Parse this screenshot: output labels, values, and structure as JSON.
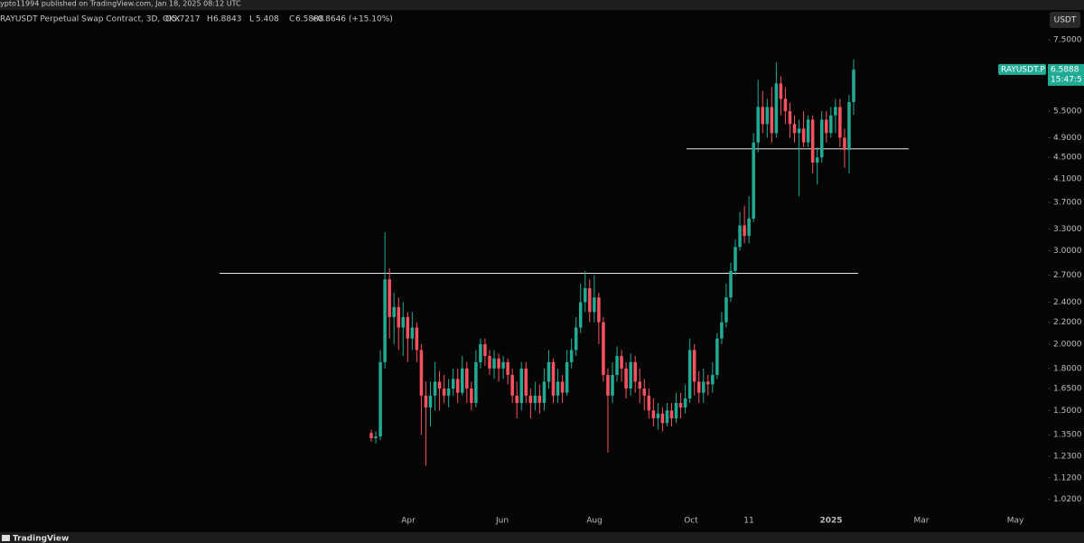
{
  "published": "ypto11994 published on TradingView.com, Jan 18, 2025 08:12 UTC",
  "currency_button": "USDT",
  "brand": "TradingView",
  "chart_data": {
    "type": "candlestick",
    "title": "RAYUSDT Perpetual Swap Contract, 3D, OKX",
    "legend_labels": [
      "O",
      "H",
      "L",
      "C"
    ],
    "change": "+0.8646 (+15.10%)",
    "symbol_label": "RAYUSDT.P",
    "countdown": "15:47:5",
    "up_color": "#22ab94",
    "down_color": "#f7525f",
    "log_scale": true,
    "x_labels": [
      "Apr",
      "Jun",
      "Aug",
      "Oct",
      "11",
      "2025",
      "Mar",
      "May"
    ],
    "ylim": [
      0.953,
      7.92
    ],
    "yticks": [
      {
        "value": 7.5,
        "label": "7.5000"
      },
      {
        "value": 5.5,
        "label": "5.5000"
      },
      {
        "value": 4.9,
        "label": "4.9000"
      },
      {
        "value": 4.5,
        "label": "4.5000"
      },
      {
        "value": 4.1,
        "label": "4.1000"
      },
      {
        "value": 3.7,
        "label": "3.7000"
      },
      {
        "value": 3.3,
        "label": "3.3000"
      },
      {
        "value": 3.0,
        "label": "3.0000"
      },
      {
        "value": 2.7,
        "label": "2.7000"
      },
      {
        "value": 2.4,
        "label": "2.4000"
      },
      {
        "value": 2.2,
        "label": "2.2000"
      },
      {
        "value": 2.0,
        "label": "2.0000"
      },
      {
        "value": 1.8,
        "label": "1.8000"
      },
      {
        "value": 1.65,
        "label": "1.6500"
      },
      {
        "value": 1.5,
        "label": "1.5000"
      },
      {
        "value": 1.35,
        "label": "1.3500"
      },
      {
        "value": 1.23,
        "label": "1.2300"
      },
      {
        "value": 1.12,
        "label": "1.1200"
      },
      {
        "value": 1.02,
        "label": "1.0200"
      }
    ],
    "levels": [
      2.72,
      4.67
    ],
    "open": [
      1.36,
      1.33,
      1.34,
      1.85,
      2.65,
      2.25,
      2.35,
      2.15,
      2.25,
      2.05,
      2.15,
      1.95,
      1.6,
      1.52,
      1.6,
      1.7,
      1.65,
      1.6,
      1.65,
      1.72,
      1.62,
      1.8,
      1.65,
      1.55,
      1.85,
      2.0,
      1.9,
      1.8,
      1.88,
      1.8,
      1.85,
      1.75,
      1.6,
      1.55,
      1.8,
      1.6,
      1.55,
      1.6,
      1.55,
      1.7,
      1.85,
      1.6,
      1.7,
      1.62,
      1.85,
      1.95,
      2.15,
      2.4,
      2.55,
      2.3,
      2.45,
      2.2,
      1.75,
      1.6,
      1.75,
      1.9,
      1.8,
      1.65,
      1.85,
      1.7,
      1.65,
      1.6,
      1.5,
      1.45,
      1.48,
      1.42,
      1.5,
      1.45,
      1.55,
      1.52,
      1.58,
      1.95,
      1.7,
      1.62,
      1.7,
      1.68,
      1.75,
      2.05,
      2.2,
      2.45,
      2.75,
      3.05,
      3.35,
      3.2,
      3.45,
      4.8,
      5.6,
      5.2,
      5.6,
      5.0,
      6.2,
      5.8,
      5.5,
      5.2,
      5.0,
      5.1,
      4.8,
      5.3,
      4.4,
      4.5,
      5.3,
      5.0,
      5.4,
      5.6,
      4.9,
      4.65,
      5.7217
    ],
    "high": [
      1.38,
      1.37,
      1.95,
      3.25,
      2.78,
      2.5,
      2.45,
      2.4,
      2.3,
      2.3,
      2.2,
      2.0,
      1.7,
      1.7,
      1.85,
      1.78,
      1.75,
      1.72,
      1.8,
      1.8,
      1.9,
      1.85,
      1.7,
      1.95,
      2.05,
      2.05,
      1.95,
      1.95,
      1.92,
      1.9,
      1.88,
      1.8,
      1.7,
      1.85,
      1.85,
      1.65,
      1.7,
      1.68,
      1.8,
      1.95,
      1.88,
      1.8,
      1.75,
      1.95,
      2.05,
      2.25,
      2.6,
      2.75,
      2.65,
      2.7,
      2.5,
      2.25,
      1.8,
      1.85,
      1.98,
      1.95,
      1.85,
      1.92,
      1.9,
      1.8,
      1.72,
      1.65,
      1.58,
      1.55,
      1.52,
      1.55,
      1.55,
      1.62,
      1.62,
      1.68,
      2.05,
      2.0,
      1.78,
      1.8,
      1.75,
      1.85,
      2.1,
      2.3,
      2.6,
      2.85,
      3.15,
      3.55,
      3.65,
      3.8,
      5.0,
      6.3,
      6.0,
      5.8,
      6.1,
      6.8,
      6.4,
      6.1,
      5.7,
      5.4,
      5.3,
      5.5,
      5.4,
      5.4,
      4.7,
      5.5,
      5.5,
      5.6,
      5.8,
      5.8,
      5.1,
      5.9,
      6.8843
    ],
    "low": [
      1.31,
      1.3,
      1.32,
      1.8,
      2.05,
      2.0,
      1.95,
      1.9,
      1.85,
      1.95,
      1.85,
      1.35,
      1.18,
      1.4,
      1.5,
      1.5,
      1.55,
      1.52,
      1.6,
      1.55,
      1.6,
      1.55,
      1.5,
      1.52,
      1.8,
      1.82,
      1.75,
      1.72,
      1.7,
      1.72,
      1.68,
      1.55,
      1.45,
      1.5,
      1.55,
      1.45,
      1.5,
      1.48,
      1.5,
      1.65,
      1.55,
      1.55,
      1.55,
      1.6,
      1.8,
      1.9,
      2.1,
      2.3,
      2.2,
      2.2,
      2.0,
      1.7,
      1.25,
      1.55,
      1.7,
      1.7,
      1.58,
      1.6,
      1.62,
      1.55,
      1.5,
      1.45,
      1.4,
      1.38,
      1.37,
      1.4,
      1.4,
      1.42,
      1.45,
      1.48,
      1.55,
      1.6,
      1.55,
      1.55,
      1.6,
      1.62,
      1.72,
      2.0,
      2.15,
      2.4,
      2.7,
      3.0,
      3.1,
      3.1,
      3.4,
      4.6,
      5.0,
      4.9,
      4.8,
      4.9,
      5.4,
      5.2,
      4.9,
      4.8,
      3.8,
      4.7,
      4.7,
      4.2,
      4.0,
      4.4,
      4.8,
      4.9,
      5.0,
      4.7,
      4.3,
      4.2,
      5.408
    ],
    "close": [
      1.33,
      1.34,
      1.85,
      2.65,
      2.25,
      2.35,
      2.15,
      2.25,
      2.05,
      2.15,
      1.95,
      1.6,
      1.52,
      1.6,
      1.7,
      1.65,
      1.6,
      1.65,
      1.72,
      1.62,
      1.8,
      1.65,
      1.55,
      1.85,
      2.0,
      1.9,
      1.8,
      1.88,
      1.8,
      1.85,
      1.75,
      1.6,
      1.55,
      1.8,
      1.6,
      1.55,
      1.6,
      1.55,
      1.7,
      1.85,
      1.6,
      1.7,
      1.62,
      1.85,
      1.95,
      2.15,
      2.4,
      2.55,
      2.3,
      2.45,
      2.2,
      1.75,
      1.6,
      1.75,
      1.9,
      1.8,
      1.65,
      1.85,
      1.7,
      1.65,
      1.6,
      1.5,
      1.45,
      1.48,
      1.42,
      1.5,
      1.45,
      1.55,
      1.52,
      1.58,
      1.95,
      1.7,
      1.62,
      1.7,
      1.68,
      1.75,
      2.05,
      2.2,
      2.45,
      2.75,
      3.05,
      3.35,
      3.2,
      3.45,
      4.8,
      5.6,
      5.2,
      5.6,
      5.0,
      6.2,
      5.8,
      5.5,
      5.2,
      5.0,
      5.1,
      4.8,
      5.3,
      4.4,
      4.5,
      5.3,
      5.0,
      5.4,
      5.6,
      4.9,
      4.65,
      5.72,
      6.5888
    ]
  }
}
